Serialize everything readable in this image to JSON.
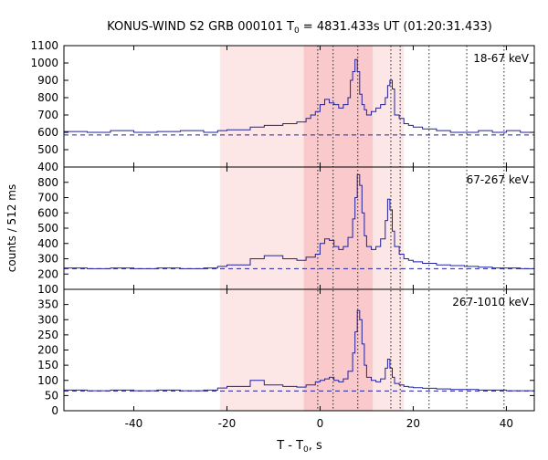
{
  "title": {
    "prefix": "KONUS-WIND S2 GRB 000101 T",
    "sub": "0",
    "suffix": " = 4831.433s UT (01:20:31.433)"
  },
  "ylabel": "counts / 512 ms",
  "xlabel": {
    "prefix": "T - T",
    "sub": "0",
    "suffix": ", s"
  },
  "chart_data": {
    "type": "line",
    "x_range": [
      -55,
      46
    ],
    "x_ticks": [
      -40,
      -20,
      0,
      20,
      40
    ],
    "light_interval": [
      -21.5,
      18
    ],
    "dark_interval": [
      -3.5,
      11.3
    ],
    "vlines": [
      -0.5,
      2.8,
      8.1,
      15.2,
      17.2,
      23.4,
      31.5,
      39.5
    ],
    "panels": [
      {
        "label": "18-67 keV",
        "ylim": [
          400,
          1100
        ],
        "yticks": [
          400,
          500,
          600,
          700,
          800,
          900,
          1000,
          1100
        ],
        "background": 585,
        "x": [
          -55,
          -50,
          -45,
          -40,
          -35,
          -30,
          -25,
          -22,
          -20,
          -15,
          -12,
          -8,
          -5,
          -3,
          -2,
          -1,
          0,
          1,
          2,
          3,
          4,
          5,
          6,
          6.5,
          7,
          7.5,
          8,
          8.5,
          9,
          9.5,
          10,
          11,
          12,
          13,
          14,
          14.5,
          15,
          15.5,
          16,
          17,
          18,
          19,
          20,
          22,
          25,
          28,
          31,
          34,
          37,
          40,
          43,
          46
        ],
        "y": [
          605,
          600,
          610,
          600,
          605,
          610,
          600,
          610,
          615,
          630,
          640,
          650,
          660,
          680,
          700,
          720,
          760,
          790,
          770,
          760,
          740,
          760,
          800,
          900,
          950,
          1020,
          950,
          820,
          760,
          730,
          700,
          720,
          740,
          760,
          800,
          870,
          900,
          850,
          700,
          680,
          650,
          640,
          630,
          620,
          610,
          600,
          600,
          610,
          600,
          610,
          600,
          590
        ]
      },
      {
        "label": "67-267 keV",
        "ylim": [
          100,
          900
        ],
        "yticks": [
          100,
          200,
          300,
          400,
          500,
          600,
          700,
          800
        ],
        "background": 235,
        "x": [
          -55,
          -50,
          -45,
          -40,
          -35,
          -30,
          -25,
          -22,
          -20,
          -15,
          -12,
          -8,
          -5,
          -3,
          -1,
          0,
          1,
          2,
          3,
          4,
          5,
          6,
          7,
          7.5,
          8,
          8.5,
          9,
          9.5,
          10,
          11,
          12,
          13,
          14,
          14.5,
          15,
          15.5,
          16,
          17,
          18,
          19,
          20,
          22,
          25,
          28,
          31,
          34,
          37,
          40,
          43,
          46
        ],
        "y": [
          240,
          235,
          240,
          235,
          240,
          235,
          240,
          250,
          260,
          300,
          320,
          300,
          290,
          310,
          330,
          400,
          430,
          420,
          380,
          360,
          380,
          440,
          560,
          700,
          850,
          780,
          600,
          450,
          380,
          360,
          380,
          430,
          550,
          690,
          620,
          480,
          380,
          330,
          300,
          290,
          280,
          270,
          260,
          255,
          250,
          245,
          240,
          240,
          235,
          235
        ]
      },
      {
        "label": "267-1010 keV",
        "ylim": [
          0,
          400
        ],
        "yticks": [
          0,
          50,
          100,
          150,
          200,
          250,
          300,
          350
        ],
        "background": 65,
        "x": [
          -55,
          -50,
          -45,
          -40,
          -35,
          -30,
          -25,
          -22,
          -20,
          -15,
          -12,
          -8,
          -5,
          -3,
          -1,
          0,
          1,
          2,
          3,
          4,
          5,
          6,
          7,
          7.5,
          8,
          8.5,
          9,
          9.5,
          10,
          11,
          12,
          13,
          14,
          14.5,
          15,
          15.5,
          16,
          17,
          18,
          19,
          20,
          22,
          25,
          28,
          31,
          34,
          37,
          40,
          43,
          46
        ],
        "y": [
          68,
          66,
          68,
          66,
          68,
          66,
          68,
          75,
          80,
          100,
          85,
          80,
          78,
          85,
          95,
          100,
          105,
          110,
          100,
          95,
          105,
          130,
          190,
          260,
          330,
          300,
          220,
          150,
          110,
          100,
          95,
          105,
          140,
          170,
          140,
          110,
          90,
          85,
          80,
          78,
          76,
          74,
          72,
          70,
          70,
          68,
          68,
          66,
          66,
          60
        ]
      }
    ]
  }
}
